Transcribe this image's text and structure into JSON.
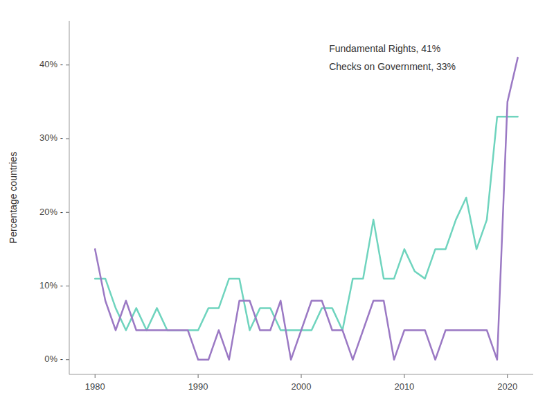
{
  "chart_data": {
    "type": "line",
    "y_label": "Percentage countries",
    "x": [
      1980,
      1981,
      1982,
      1983,
      1984,
      1985,
      1986,
      1987,
      1988,
      1989,
      1990,
      1991,
      1992,
      1993,
      1994,
      1995,
      1996,
      1997,
      1998,
      1999,
      2000,
      2001,
      2002,
      2003,
      2004,
      2005,
      2006,
      2007,
      2008,
      2009,
      2010,
      2011,
      2012,
      2013,
      2014,
      2015,
      2016,
      2017,
      2018,
      2019,
      2020,
      2021
    ],
    "series": [
      {
        "color": "#6fd4be",
        "values": [
          11,
          11,
          7,
          4,
          7,
          4,
          7,
          4,
          4,
          4,
          4,
          7,
          7,
          11,
          11,
          4,
          7,
          7,
          4,
          4,
          4,
          4,
          7,
          7,
          4,
          11,
          11,
          19,
          11,
          11,
          15,
          12,
          11,
          15,
          15,
          19,
          22,
          15,
          19,
          33,
          33,
          33
        ]
      },
      {
        "color": "#9b79c4",
        "values": [
          15,
          8,
          4,
          8,
          4,
          4,
          4,
          4,
          4,
          4,
          0,
          0,
          4,
          0,
          8,
          8,
          4,
          4,
          8,
          0,
          4,
          8,
          8,
          4,
          4,
          0,
          4,
          8,
          8,
          0,
          4,
          4,
          4,
          0,
          4,
          4,
          4,
          4,
          4,
          0,
          35,
          41
        ]
      }
    ],
    "annotations": [
      "Fundamental Rights, 41%",
      "Checks on Government, 33%"
    ],
    "xlim": [
      1977.5,
      2022.5
    ],
    "xticks": [
      1980,
      1990,
      2000,
      2010,
      2020
    ],
    "ylim": [
      -2,
      46
    ],
    "yticks": [
      {
        "value": 0,
        "label": "0% -"
      },
      {
        "value": 10,
        "label": "10% -"
      },
      {
        "value": 20,
        "label": "20% -"
      },
      {
        "value": 30,
        "label": "30% -"
      },
      {
        "value": 40,
        "label": "40% -"
      }
    ],
    "grid": false
  }
}
